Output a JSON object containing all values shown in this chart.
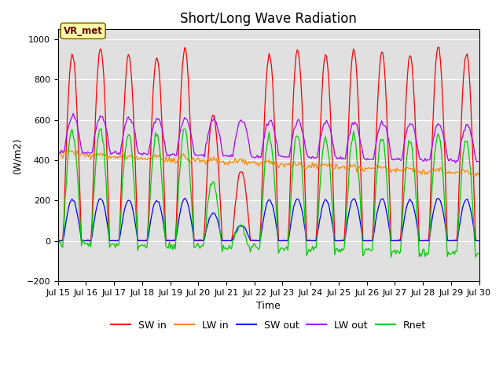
{
  "title": "Short/Long Wave Radiation",
  "xlabel": "Time",
  "ylabel": "(W/m2)",
  "ylim": [
    -200,
    1050
  ],
  "yticks": [
    -200,
    0,
    200,
    400,
    600,
    800,
    1000
  ],
  "legend_labels": [
    "SW in",
    "LW in",
    "SW out",
    "LW out",
    "Rnet"
  ],
  "legend_colors": [
    "#ff0000",
    "#ff8800",
    "#0000ff",
    "#aa00ff",
    "#00cc00"
  ],
  "annotation_text": "VR_met",
  "background_color": "#e0e0e0",
  "n_days": 15,
  "start_day": 15,
  "title_fontsize": 12,
  "label_fontsize": 9,
  "tick_fontsize": 8
}
